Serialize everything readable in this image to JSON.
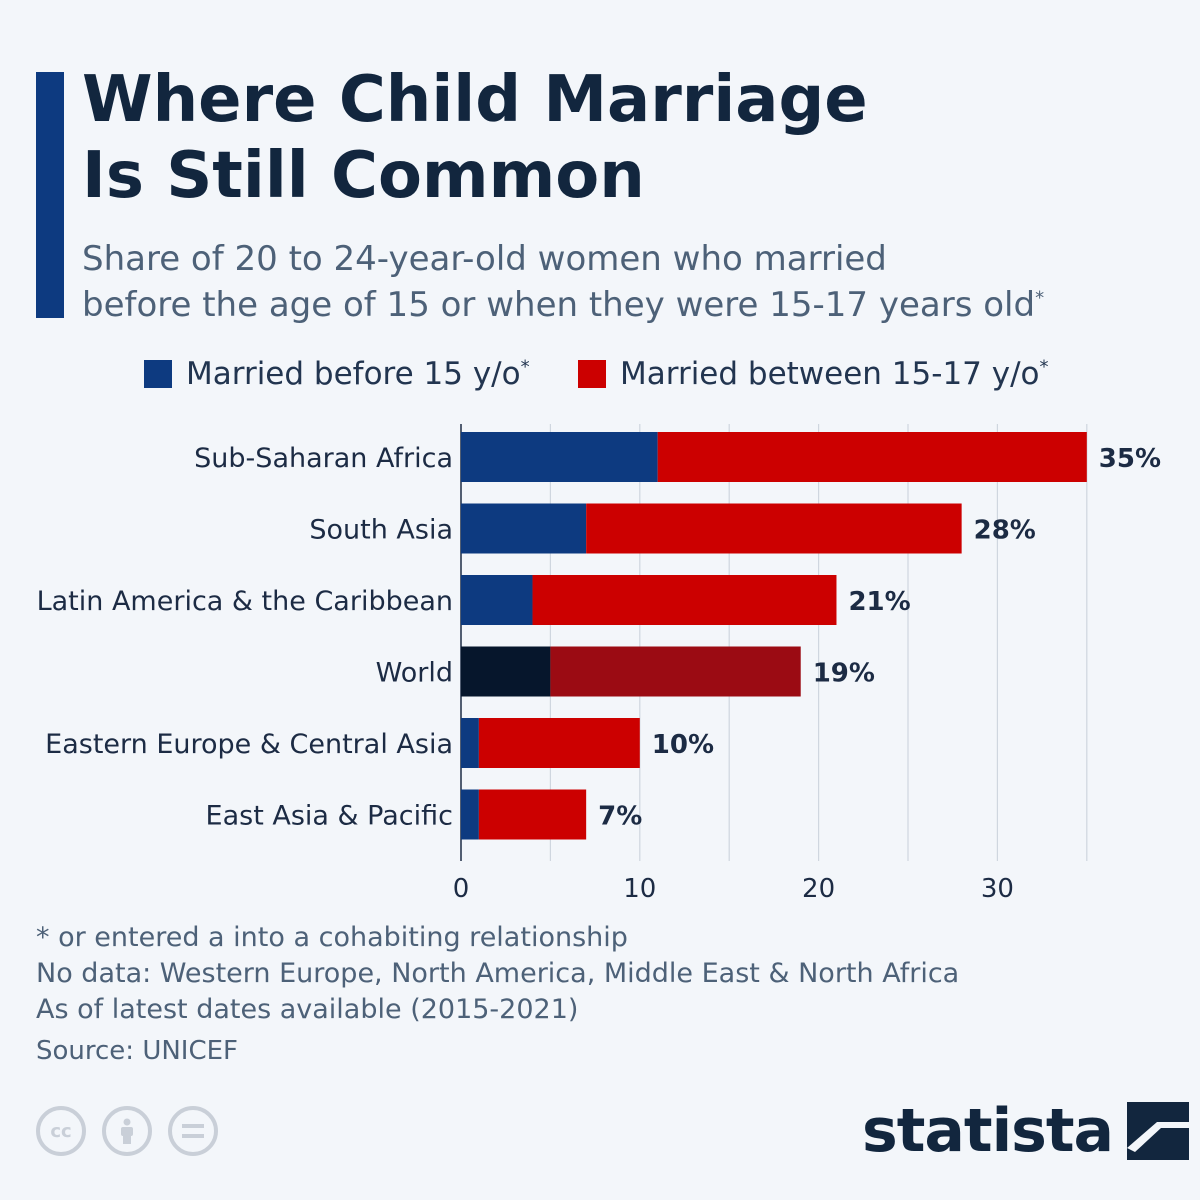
{
  "header": {
    "title_line1": "Where Child Marriage",
    "title_line2": "Is Still Common",
    "subtitle_line1": "Share of 20 to 24-year-old women who married",
    "subtitle_line2": "before the age of 15 or when they were 15-17 years old",
    "subtitle_marker": "*"
  },
  "legend": [
    {
      "label": "Married before 15 y/o",
      "marker": "*",
      "color": "#0d3a80"
    },
    {
      "label": "Married between 15-17 y/o",
      "marker": "*",
      "color": "#cc0000"
    }
  ],
  "chart_data": {
    "type": "bar",
    "orientation": "horizontal",
    "stacked": true,
    "categories": [
      "Sub-Saharan Africa",
      "South Asia",
      "Latin America & the Caribbean",
      "World",
      "Eastern Europe & Central Asia",
      "East Asia & Pacific"
    ],
    "series": [
      {
        "name": "Married before 15 y/o",
        "values": [
          11,
          7,
          4,
          5,
          1,
          1
        ]
      },
      {
        "name": "Married between 15-17 y/o",
        "values": [
          24,
          21,
          17,
          14,
          9,
          6
        ]
      }
    ],
    "totals": [
      35,
      28,
      21,
      19,
      10,
      7
    ],
    "total_labels": [
      "35%",
      "28%",
      "21%",
      "19%",
      "10%",
      "7%"
    ],
    "highlight_category": "World",
    "highlight_colors": [
      "#06162c",
      "#9b0b13"
    ],
    "xlim": [
      0,
      35
    ],
    "xticks": [
      0,
      10,
      20,
      30
    ],
    "grid": true,
    "legend_position": "top"
  },
  "footnotes": [
    "* or entered a into a cohabiting relationship",
    "No data: Western Europe, North America, Middle East & North Africa",
    "As of latest dates available (2015-2021)"
  ],
  "source": "Source: UNICEF",
  "brand": "statista",
  "license_icons": [
    "cc-icon",
    "attribution-icon",
    "no-derivatives-icon"
  ]
}
